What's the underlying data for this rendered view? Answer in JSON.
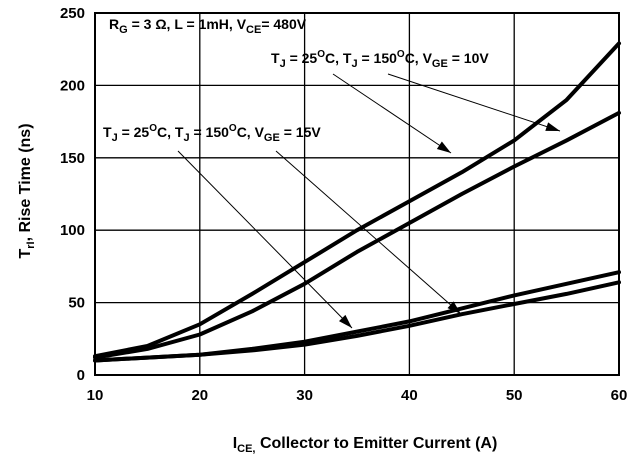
{
  "chart_data": {
    "type": "line",
    "xlabel": {
      "main": "I",
      "sub": "CE,",
      "rest": " Collector to Emitter Current (A)"
    },
    "ylabel": {
      "main": "T",
      "sub": "rI",
      "rest": ", Rise Time (ns)"
    },
    "xlim": [
      10,
      60
    ],
    "ylim": [
      0,
      250
    ],
    "x_ticks": [
      10,
      20,
      30,
      40,
      50,
      60
    ],
    "y_ticks": [
      0,
      50,
      100,
      150,
      200,
      250
    ],
    "grid": true,
    "annotations": {
      "conditions": {
        "r": "R",
        "r_sub": "G",
        "r_rest": " = 3 Ω, L = 1mH, V",
        "v_sub": "CE",
        "v_rest": "= 480V"
      },
      "vge10": {
        "t1": "T",
        "j1": "J",
        "eq1": " = 25",
        "deg": "O",
        "c1": "C, T",
        "j2": "J",
        "eq2": " = 150",
        "c2": "C, V",
        "ge": "GE",
        "val": " = 10V"
      },
      "vge15": {
        "t1": "T",
        "j1": "J",
        "eq1": " = 25",
        "deg": "O",
        "c1": "C, T",
        "j2": "J",
        "eq2": " = 150",
        "c2": "C, V",
        "ge": "GE",
        "val": " = 15V"
      }
    },
    "series": [
      {
        "x": [
          10,
          15,
          20,
          25,
          30,
          35,
          40,
          45,
          50,
          55,
          60
        ],
        "values": [
          13,
          20,
          35,
          56,
          78,
          100,
          120,
          140,
          162,
          190,
          229
        ]
      },
      {
        "x": [
          10,
          15,
          20,
          25,
          30,
          35,
          40,
          45,
          50,
          55,
          60
        ],
        "values": [
          12,
          18,
          28,
          44,
          63,
          85,
          105,
          125,
          144,
          162,
          181
        ]
      },
      {
        "x": [
          10,
          15,
          20,
          25,
          30,
          35,
          40,
          45,
          50,
          55,
          60
        ],
        "values": [
          10,
          12,
          14,
          18,
          23,
          30,
          37,
          46,
          55,
          63,
          71
        ]
      },
      {
        "x": [
          10,
          15,
          20,
          25,
          30,
          35,
          40,
          45,
          50,
          55,
          60
        ],
        "values": [
          10,
          12,
          14,
          17,
          21,
          27,
          34,
          42,
          49,
          56,
          64
        ]
      }
    ]
  }
}
